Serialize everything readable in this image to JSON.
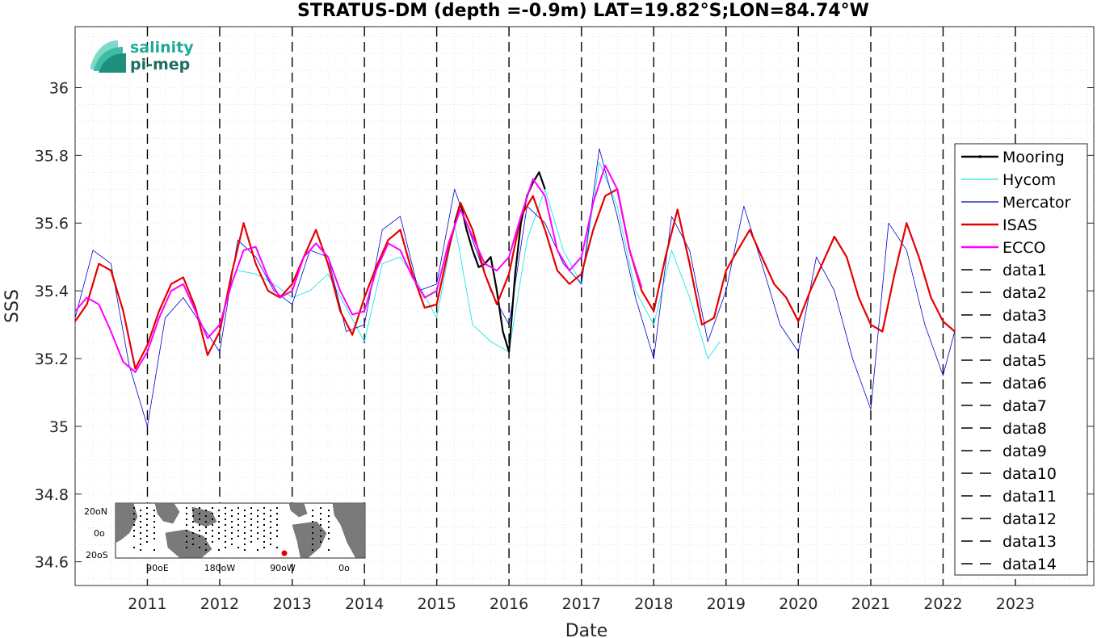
{
  "chart_data": {
    "type": "line",
    "title": "STRATUS-DM (depth =-0.9m) LAT=19.82°S;LON=84.74°W",
    "xlabel": "Date",
    "ylabel": "SSS",
    "xlim": [
      "2010-01-01",
      "2024-02-01"
    ],
    "ylim": [
      34.53,
      36.18
    ],
    "x_ticks": [
      "2011",
      "2012",
      "2013",
      "2014",
      "2015",
      "2016",
      "2017",
      "2018",
      "2019",
      "2020",
      "2021",
      "2022",
      "2023"
    ],
    "y_ticks": [
      "34.6",
      "34.8",
      "35",
      "35.2",
      "35.4",
      "35.6",
      "35.8",
      "36"
    ],
    "grid": true,
    "legend_position": "right",
    "vertical_dashed_lines": [
      "2011-01-01",
      "2012-01-01",
      "2013-01-01",
      "2014-01-01",
      "2015-01-01",
      "2016-01-01",
      "2017-01-01",
      "2018-01-01",
      "2019-01-01",
      "2020-01-01",
      "2021-01-01",
      "2022-01-01",
      "2023-01-01"
    ],
    "series": [
      {
        "name": "Mooring",
        "color": "#000000",
        "x": [
          "2015-04-01",
          "2015-05-01",
          "2015-06-01",
          "2015-07-01",
          "2015-08-01",
          "2015-09-01",
          "2015-10-01",
          "2015-11-01",
          "2015-12-01",
          "2016-01-01",
          "2016-02-01",
          "2016-03-01",
          "2016-04-01",
          "2016-05-01",
          "2016-06-01",
          "2016-07-01"
        ],
        "y": [
          35.6,
          35.66,
          35.58,
          35.52,
          35.47,
          35.48,
          35.5,
          35.4,
          35.28,
          35.22,
          35.45,
          35.6,
          35.68,
          35.72,
          35.75,
          35.7
        ]
      },
      {
        "name": "Hycom",
        "color": "#1ee6e6",
        "x": [
          "2012-04-01",
          "2012-07-01",
          "2012-10-01",
          "2013-01-01",
          "2013-04-01",
          "2013-07-01",
          "2013-10-01",
          "2014-01-01",
          "2014-04-01",
          "2014-07-01",
          "2014-10-01",
          "2015-01-01",
          "2015-04-01",
          "2015-07-01",
          "2015-10-01",
          "2016-01-01",
          "2016-04-01",
          "2016-07-01",
          "2016-10-01",
          "2017-01-01",
          "2017-04-01",
          "2017-07-01",
          "2017-10-01",
          "2018-01-01",
          "2018-04-01",
          "2018-07-01",
          "2018-10-01",
          "2018-12-01"
        ],
        "y": [
          35.46,
          35.45,
          35.42,
          35.38,
          35.4,
          35.45,
          35.35,
          35.25,
          35.48,
          35.5,
          35.42,
          35.32,
          35.6,
          35.3,
          35.25,
          35.22,
          35.55,
          35.7,
          35.52,
          35.42,
          35.78,
          35.65,
          35.4,
          35.3,
          35.52,
          35.38,
          35.2,
          35.25
        ]
      },
      {
        "name": "Mercator",
        "color": "#0000cc",
        "x": [
          "2010-01-01",
          "2010-04-01",
          "2010-07-01",
          "2010-10-01",
          "2011-01-01",
          "2011-04-01",
          "2011-07-01",
          "2011-10-01",
          "2012-01-01",
          "2012-04-01",
          "2012-07-01",
          "2012-10-01",
          "2013-01-01",
          "2013-04-01",
          "2013-07-01",
          "2013-10-01",
          "2014-01-01",
          "2014-04-01",
          "2014-07-01",
          "2014-10-01",
          "2015-01-01",
          "2015-04-01",
          "2015-07-01",
          "2015-10-01",
          "2016-01-01",
          "2016-04-01",
          "2016-07-01",
          "2016-10-01",
          "2017-01-01",
          "2017-04-01",
          "2017-07-01",
          "2017-10-01",
          "2018-01-01",
          "2018-04-01",
          "2018-07-01",
          "2018-10-01",
          "2019-01-01",
          "2019-04-01",
          "2019-07-01",
          "2019-10-01",
          "2020-01-01",
          "2020-04-01",
          "2020-07-01",
          "2020-10-01",
          "2021-01-01",
          "2021-04-01",
          "2021-07-01",
          "2021-10-01",
          "2022-01-01",
          "2022-04-01",
          "2022-06-01"
        ],
        "y": [
          35.32,
          35.52,
          35.48,
          35.18,
          35.0,
          35.32,
          35.38,
          35.3,
          35.22,
          35.55,
          35.5,
          35.4,
          35.36,
          35.52,
          35.5,
          35.28,
          35.3,
          35.58,
          35.62,
          35.4,
          35.42,
          35.7,
          35.55,
          35.4,
          35.3,
          35.65,
          35.6,
          35.48,
          35.42,
          35.82,
          35.62,
          35.38,
          35.2,
          35.62,
          35.52,
          35.25,
          35.4,
          35.65,
          35.48,
          35.3,
          35.22,
          35.5,
          35.4,
          35.2,
          35.05,
          35.6,
          35.52,
          35.3,
          35.15,
          35.35,
          35.4
        ]
      },
      {
        "name": "ISAS",
        "color": "#e60000",
        "x": [
          "2010-01-01",
          "2010-03-01",
          "2010-05-01",
          "2010-07-01",
          "2010-09-01",
          "2010-11-01",
          "2011-01-01",
          "2011-03-01",
          "2011-05-01",
          "2011-07-01",
          "2011-09-01",
          "2011-11-01",
          "2012-01-01",
          "2012-03-01",
          "2012-05-01",
          "2012-07-01",
          "2012-09-01",
          "2012-11-01",
          "2013-01-01",
          "2013-03-01",
          "2013-05-01",
          "2013-07-01",
          "2013-09-01",
          "2013-11-01",
          "2014-01-01",
          "2014-03-01",
          "2014-05-01",
          "2014-07-01",
          "2014-09-01",
          "2014-11-01",
          "2015-01-01",
          "2015-03-01",
          "2015-05-01",
          "2015-07-01",
          "2015-09-01",
          "2015-11-01",
          "2016-01-01",
          "2016-03-01",
          "2016-05-01",
          "2016-07-01",
          "2016-09-01",
          "2016-11-01",
          "2017-01-01",
          "2017-03-01",
          "2017-05-01",
          "2017-07-01",
          "2017-09-01",
          "2017-11-01",
          "2018-01-01",
          "2018-03-01",
          "2018-05-01",
          "2018-07-01",
          "2018-09-01",
          "2018-11-01",
          "2019-01-01",
          "2019-03-01",
          "2019-05-01",
          "2019-07-01",
          "2019-09-01",
          "2019-11-01",
          "2020-01-01",
          "2020-03-01",
          "2020-05-01",
          "2020-07-01",
          "2020-09-01",
          "2020-11-01",
          "2021-01-01",
          "2021-03-01",
          "2021-05-01",
          "2021-07-01",
          "2021-09-01",
          "2021-11-01",
          "2022-01-01",
          "2022-03-01",
          "2022-05-01",
          "2022-06-15"
        ],
        "y": [
          35.31,
          35.36,
          35.48,
          35.46,
          35.34,
          35.17,
          35.24,
          35.34,
          35.42,
          35.44,
          35.35,
          35.21,
          35.28,
          35.45,
          35.6,
          35.48,
          35.4,
          35.38,
          35.42,
          35.5,
          35.58,
          35.48,
          35.34,
          35.27,
          35.38,
          35.47,
          35.55,
          35.58,
          35.45,
          35.35,
          35.36,
          35.52,
          35.66,
          35.58,
          35.45,
          35.36,
          35.45,
          35.62,
          35.68,
          35.58,
          35.46,
          35.42,
          35.45,
          35.58,
          35.68,
          35.7,
          35.52,
          35.4,
          35.34,
          35.5,
          35.64,
          35.48,
          35.3,
          35.32,
          35.46,
          35.52,
          35.58,
          35.5,
          35.42,
          35.38,
          35.31,
          35.4,
          35.48,
          35.56,
          35.5,
          35.38,
          35.3,
          35.28,
          35.45,
          35.6,
          35.5,
          35.38,
          35.31,
          35.28,
          35.38,
          35.34
        ]
      },
      {
        "name": "ECCO",
        "color": "#ff00ff",
        "x": [
          "2010-01-01",
          "2010-03-01",
          "2010-05-01",
          "2010-07-01",
          "2010-09-01",
          "2010-11-01",
          "2011-01-01",
          "2011-03-01",
          "2011-05-01",
          "2011-07-01",
          "2011-09-01",
          "2011-11-01",
          "2012-01-01",
          "2012-03-01",
          "2012-05-01",
          "2012-07-01",
          "2012-09-01",
          "2012-11-01",
          "2013-01-01",
          "2013-03-01",
          "2013-05-01",
          "2013-07-01",
          "2013-09-01",
          "2013-11-01",
          "2014-01-01",
          "2014-03-01",
          "2014-05-01",
          "2014-07-01",
          "2014-09-01",
          "2014-11-01",
          "2015-01-01",
          "2015-03-01",
          "2015-05-01",
          "2015-07-01",
          "2015-09-01",
          "2015-11-01",
          "2016-01-01",
          "2016-03-01",
          "2016-05-01",
          "2016-07-01",
          "2016-09-01",
          "2016-11-01",
          "2017-01-01",
          "2017-03-01",
          "2017-05-01",
          "2017-07-01",
          "2017-09-01",
          "2017-11-01"
        ],
        "y": [
          35.34,
          35.38,
          35.36,
          35.28,
          35.19,
          35.16,
          35.22,
          35.32,
          35.4,
          35.42,
          35.34,
          35.26,
          35.3,
          35.42,
          35.52,
          35.53,
          35.44,
          35.38,
          35.4,
          35.5,
          35.54,
          35.5,
          35.4,
          35.33,
          35.34,
          35.46,
          35.54,
          35.52,
          35.44,
          35.38,
          35.4,
          35.54,
          35.64,
          35.56,
          35.48,
          35.46,
          35.5,
          35.62,
          35.73,
          35.68,
          35.52,
          35.46,
          35.5,
          35.66,
          35.77,
          35.7,
          35.52,
          35.41
        ]
      },
      {
        "name": "data1",
        "color": "#000000"
      },
      {
        "name": "data2",
        "color": "#000000"
      },
      {
        "name": "data3",
        "color": "#000000"
      },
      {
        "name": "data4",
        "color": "#000000"
      },
      {
        "name": "data5",
        "color": "#000000"
      },
      {
        "name": "data6",
        "color": "#000000"
      },
      {
        "name": "data7",
        "color": "#000000"
      },
      {
        "name": "data8",
        "color": "#000000"
      },
      {
        "name": "data9",
        "color": "#000000"
      },
      {
        "name": "data10",
        "color": "#000000"
      },
      {
        "name": "data11",
        "color": "#000000"
      },
      {
        "name": "data12",
        "color": "#000000"
      },
      {
        "name": "data13",
        "color": "#000000"
      },
      {
        "name": "data14",
        "color": "#000000"
      }
    ]
  },
  "logo": {
    "line1": "salinity",
    "line2": "pi-mep",
    "color1": "#20a99a",
    "color2": "#1f6e5e"
  },
  "inset_map": {
    "lat_labels": [
      "20oN",
      "0o",
      "20oS"
    ],
    "lon_labels": [
      "90oE",
      "180oW",
      "90oW",
      "0o"
    ]
  }
}
